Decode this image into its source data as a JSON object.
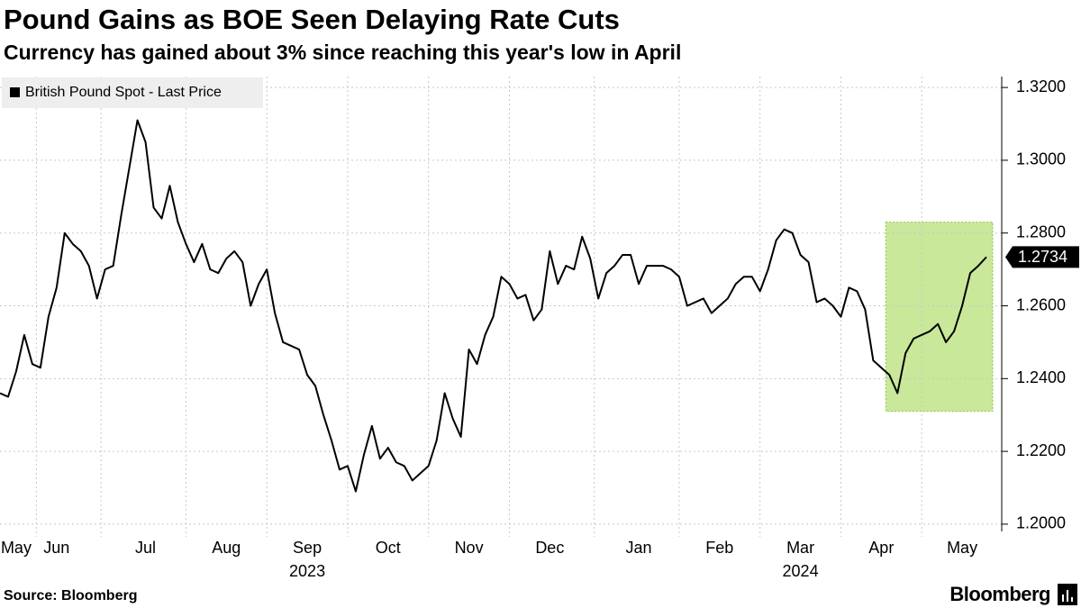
{
  "chart_data": {
    "type": "line",
    "title": "Pound Gains as BOE Seen Delaying Rate Cuts",
    "subtitle": "Currency has gained about 3% since reaching this year's low in April",
    "source": "Source: Bloomberg",
    "brand": "Bloomberg",
    "categories": [
      null,
      null,
      "May",
      null,
      null,
      null,
      null,
      "Jun",
      null,
      null,
      null,
      null,
      null,
      null,
      null,
      null,
      null,
      null,
      "Jul",
      null,
      null,
      null,
      null,
      null,
      null,
      null,
      null,
      null,
      "Aug",
      null,
      null,
      null,
      null,
      null,
      null,
      null,
      null,
      null,
      "Sep",
      null,
      null,
      null,
      null,
      null,
      null,
      null,
      null,
      null,
      "Oct",
      null,
      null,
      null,
      null,
      null,
      null,
      null,
      null,
      null,
      "Nov",
      null,
      null,
      null,
      null,
      null,
      null,
      null,
      null,
      null,
      "Dec",
      null,
      null,
      null,
      null,
      null,
      null,
      null,
      null,
      null,
      null,
      "Jan",
      null,
      null,
      null,
      null,
      null,
      null,
      null,
      null,
      null,
      "Feb",
      null,
      null,
      null,
      null,
      null,
      null,
      null,
      null,
      null,
      "Mar",
      null,
      null,
      null,
      null,
      null,
      null,
      null,
      null,
      null,
      "Apr",
      null,
      null,
      null,
      null,
      null,
      null,
      null,
      null,
      null,
      "May",
      null,
      null,
      null
    ],
    "category_groups": [
      null,
      null,
      null,
      null,
      null,
      null,
      null,
      null,
      null,
      null,
      null,
      null,
      null,
      null,
      null,
      null,
      null,
      null,
      null,
      null,
      null,
      null,
      null,
      null,
      null,
      null,
      null,
      null,
      null,
      null,
      null,
      null,
      null,
      null,
      null,
      null,
      null,
      null,
      "2023",
      null,
      null,
      null,
      null,
      null,
      null,
      null,
      null,
      null,
      null,
      null,
      null,
      null,
      null,
      null,
      null,
      null,
      null,
      null,
      null,
      null,
      null,
      null,
      null,
      null,
      null,
      null,
      null,
      null,
      null,
      null,
      null,
      null,
      null,
      null,
      null,
      null,
      null,
      null,
      null,
      null,
      null,
      null,
      null,
      null,
      null,
      null,
      null,
      null,
      null,
      null,
      null,
      null,
      null,
      null,
      null,
      null,
      null,
      null,
      null,
      "2024",
      null,
      null,
      null,
      null,
      null,
      null,
      null,
      null,
      null,
      null,
      null,
      null,
      null,
      null,
      null,
      null,
      null,
      null,
      null,
      null,
      null,
      null,
      null
    ],
    "series": [
      {
        "name": "British Pound Spot - Last Price",
        "color": "#000000",
        "values": [
          1.236,
          1.235,
          1.242,
          1.252,
          1.244,
          1.243,
          1.257,
          1.265,
          1.28,
          1.277,
          1.275,
          1.271,
          1.262,
          1.27,
          1.271,
          1.285,
          1.298,
          1.311,
          1.305,
          1.287,
          1.284,
          1.293,
          1.283,
          1.277,
          1.272,
          1.277,
          1.27,
          1.269,
          1.273,
          1.275,
          1.272,
          1.26,
          1.266,
          1.27,
          1.258,
          1.25,
          1.249,
          1.248,
          1.241,
          1.238,
          1.23,
          1.223,
          1.215,
          1.216,
          1.209,
          1.219,
          1.227,
          1.218,
          1.221,
          1.217,
          1.216,
          1.212,
          1.214,
          1.216,
          1.223,
          1.236,
          1.229,
          1.224,
          1.248,
          1.244,
          1.252,
          1.257,
          1.268,
          1.266,
          1.262,
          1.263,
          1.256,
          1.259,
          1.275,
          1.266,
          1.271,
          1.27,
          1.279,
          1.273,
          1.262,
          1.269,
          1.271,
          1.274,
          1.274,
          1.266,
          1.271,
          1.271,
          1.271,
          1.27,
          1.268,
          1.26,
          1.261,
          1.262,
          1.258,
          1.26,
          1.262,
          1.266,
          1.268,
          1.268,
          1.264,
          1.27,
          1.278,
          1.281,
          1.28,
          1.274,
          1.272,
          1.261,
          1.262,
          1.26,
          1.257,
          1.265,
          1.264,
          1.259,
          1.245,
          1.243,
          1.241,
          1.236,
          1.247,
          1.251,
          1.252,
          1.253,
          1.255,
          1.25,
          1.253,
          1.26,
          1.269,
          1.271,
          1.2734
        ]
      }
    ],
    "ylim": [
      1.198,
      1.323
    ],
    "yticks": [
      {
        "value": 1.32,
        "label": "1.3200"
      },
      {
        "value": 1.3,
        "label": "1.3000"
      },
      {
        "value": 1.28,
        "label": "1.2800"
      },
      {
        "value": 1.26,
        "label": "1.2600"
      },
      {
        "value": 1.24,
        "label": "1.2400"
      },
      {
        "value": 1.22,
        "label": "1.2200"
      },
      {
        "value": 1.2,
        "label": "1.2000"
      }
    ],
    "highlight": {
      "x": [
        110,
        123
      ],
      "y": [
        1.231,
        1.283
      ],
      "color": "#c9e89a"
    },
    "grid": true,
    "legend": "top-left"
  }
}
